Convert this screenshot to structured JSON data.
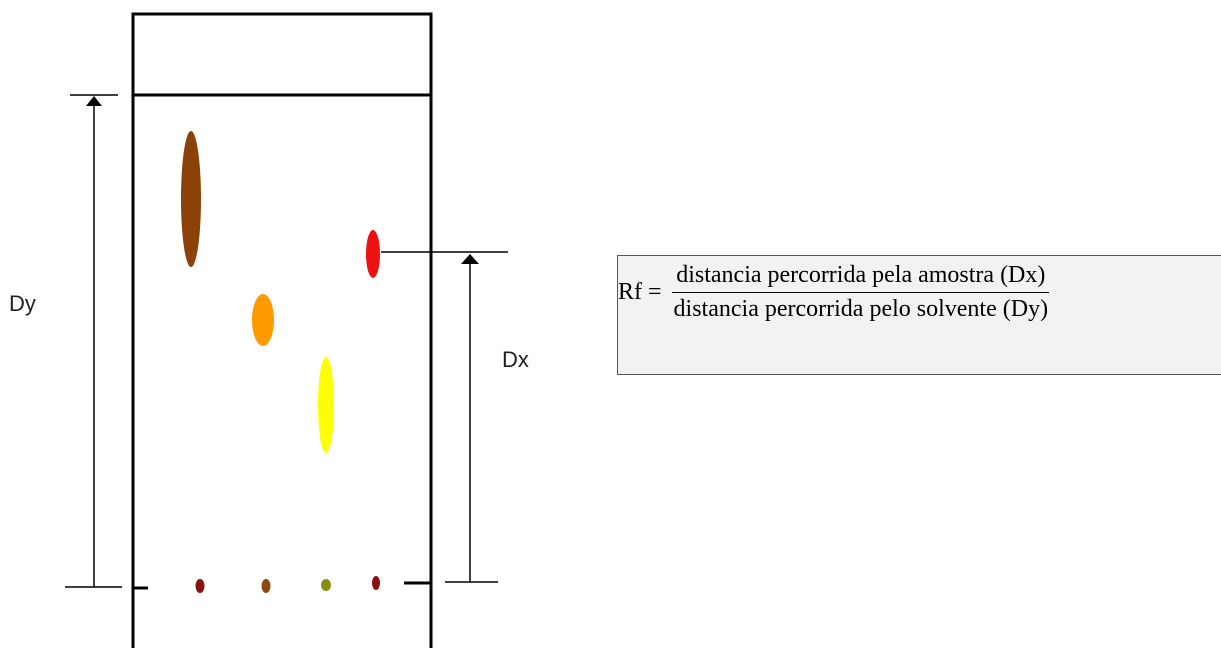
{
  "labels": {
    "dy": "Dy",
    "dx": "Dx"
  },
  "formula": {
    "lhs": "Rf =",
    "numerator": "distancia percorrida pela amostra (Dx)",
    "denominator": "distancia percorrida pelo solvente (Dy)"
  },
  "colors": {
    "spot_brown": "#8b4209",
    "spot_red": "#ee1111",
    "spot_orange": "#ff9900",
    "spot_yellow": "#ffff00",
    "dot_darkred": "#8b1010",
    "dot_brown": "#8b4a10",
    "dot_olive": "#8b8b10",
    "box_fill": "#f2f2f2"
  }
}
